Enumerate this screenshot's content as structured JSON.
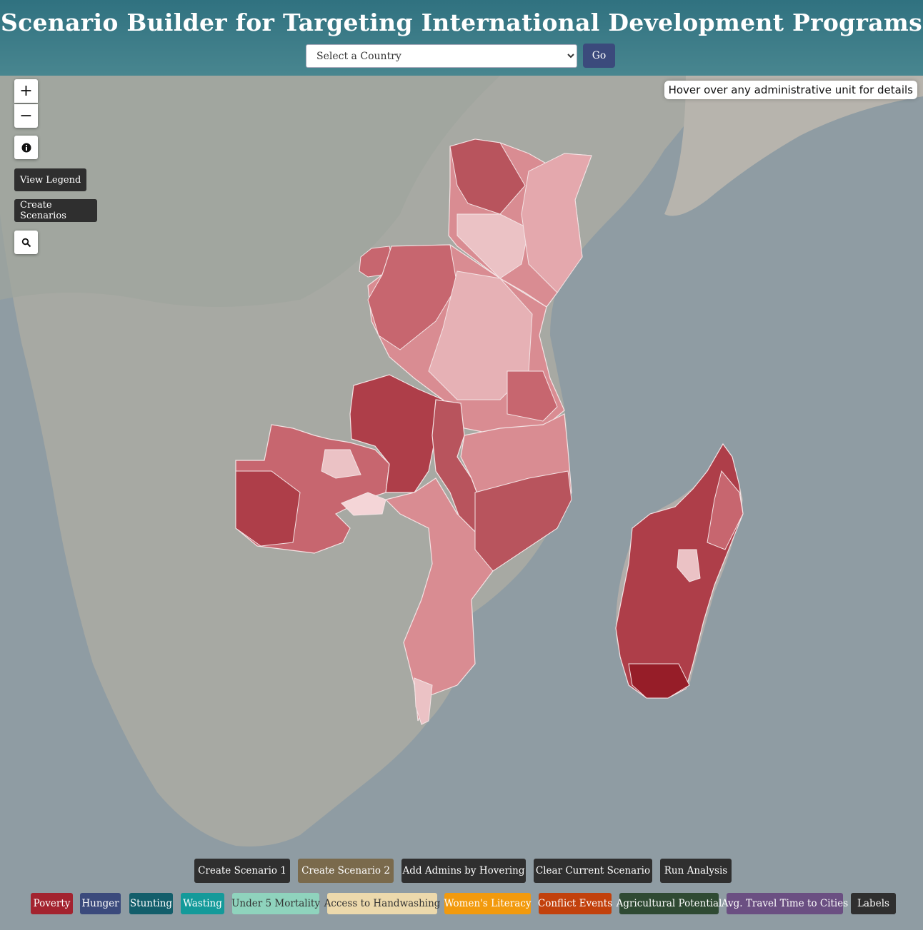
{
  "header": {
    "title": "Scenario Builder for Targeting International Development Programs",
    "country_select": {
      "value": "Select a Country"
    },
    "go_label": "Go"
  },
  "map_controls": {
    "zoom_in": "+",
    "zoom_out": "−",
    "info_icon": "info-icon",
    "search_icon": "search-icon",
    "view_legend": "View Legend",
    "create_scenarios": "Create Scenarios"
  },
  "hover_info": "Hover over any administrative unit for details",
  "scenario_buttons": [
    {
      "label": "Create Scenario 1",
      "color": "#2f2f2f"
    },
    {
      "label": "Create Scenario 2",
      "color": "#7a6a4c"
    },
    {
      "label": "Add Admins by Hovering",
      "color": "#2f2f2f"
    },
    {
      "label": "Clear Current Scenario",
      "color": "#2f2f2f"
    },
    {
      "label": "Run Analysis",
      "color": "#2f2f2f"
    }
  ],
  "layer_buttons": [
    {
      "label": "Poverty",
      "bg": "#a3232f",
      "fg": "#ffffff"
    },
    {
      "label": "Hunger",
      "bg": "#3b4a7c",
      "fg": "#ffffff"
    },
    {
      "label": "Stunting",
      "bg": "#135e6b",
      "fg": "#ffffff"
    },
    {
      "label": "Wasting",
      "bg": "#149a9a",
      "fg": "#ffffff"
    },
    {
      "label": "Under 5 Mortality",
      "bg": "#8fd3bd",
      "fg": "#333333"
    },
    {
      "label": "Access to Handwashing",
      "bg": "#ecd9ac",
      "fg": "#333333"
    },
    {
      "label": "Women's Literacy",
      "bg": "#f29a0d",
      "fg": "#ffffff"
    },
    {
      "label": "Conflict Events",
      "bg": "#c2410c",
      "fg": "#ffffff"
    },
    {
      "label": "Agricultural Potential",
      "bg": "#2f4a33",
      "fg": "#ffffff"
    },
    {
      "label": "Avg. Travel Time to Cities",
      "bg": "#6b4f82",
      "fg": "#ffffff"
    },
    {
      "label": "Labels",
      "bg": "#2f2f2f",
      "fg": "#ffffff"
    }
  ]
}
